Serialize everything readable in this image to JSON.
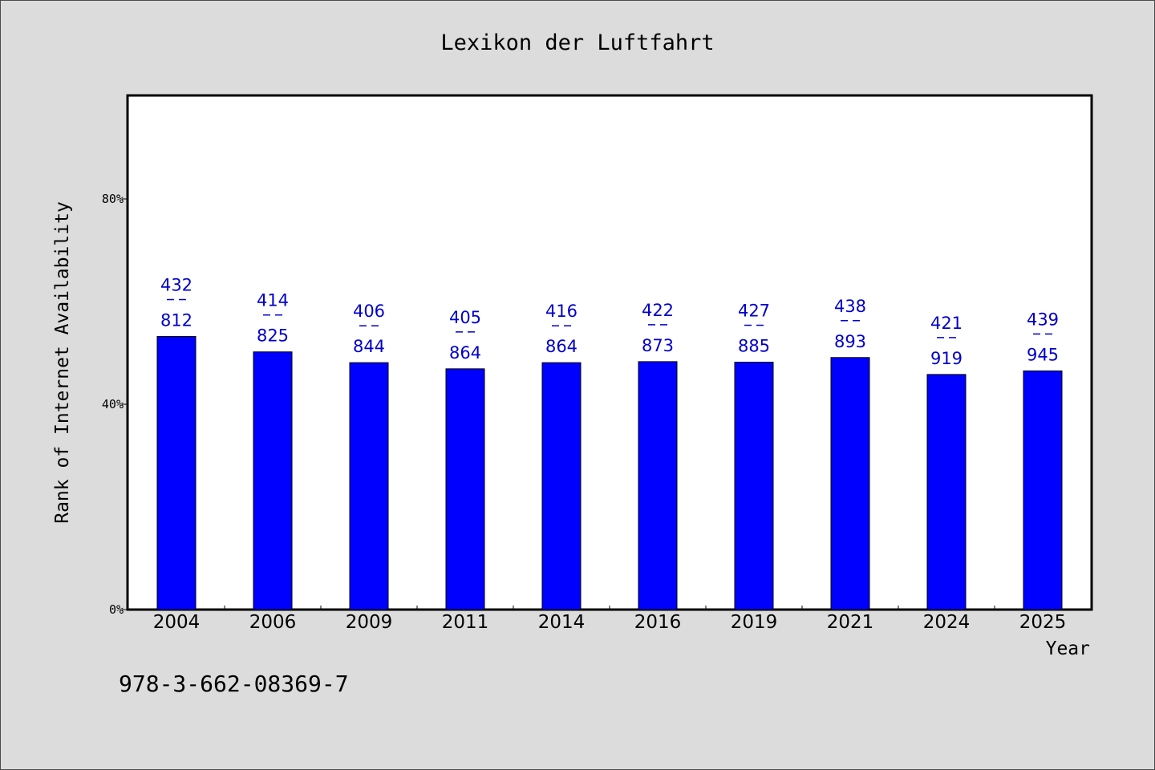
{
  "chart_data": {
    "type": "bar",
    "title": "Lexikon der Luftfahrt",
    "xlabel": "Year",
    "ylabel": "Rank of Internet Availability",
    "categories": [
      "2004",
      "2006",
      "2009",
      "2011",
      "2014",
      "2016",
      "2019",
      "2021",
      "2024",
      "2025"
    ],
    "values": [
      0.532,
      0.502,
      0.481,
      0.469,
      0.481,
      0.483,
      0.482,
      0.491,
      0.458,
      0.465
    ],
    "top_labels": [
      "432",
      "414",
      "406",
      "405",
      "416",
      "422",
      "427",
      "438",
      "421",
      "439"
    ],
    "bottom_labels": [
      "812",
      "825",
      "844",
      "864",
      "864",
      "873",
      "885",
      "893",
      "919",
      "945"
    ],
    "ylim": [
      0,
      1
    ],
    "yticks": [
      0,
      0.4,
      0.8
    ],
    "ytick_labels": [
      "0%",
      "40%",
      "80%"
    ],
    "grid": false,
    "bar_color": "#0000ff",
    "label_color": "#0000cc"
  },
  "footnote": "978-3-662-08369-7"
}
